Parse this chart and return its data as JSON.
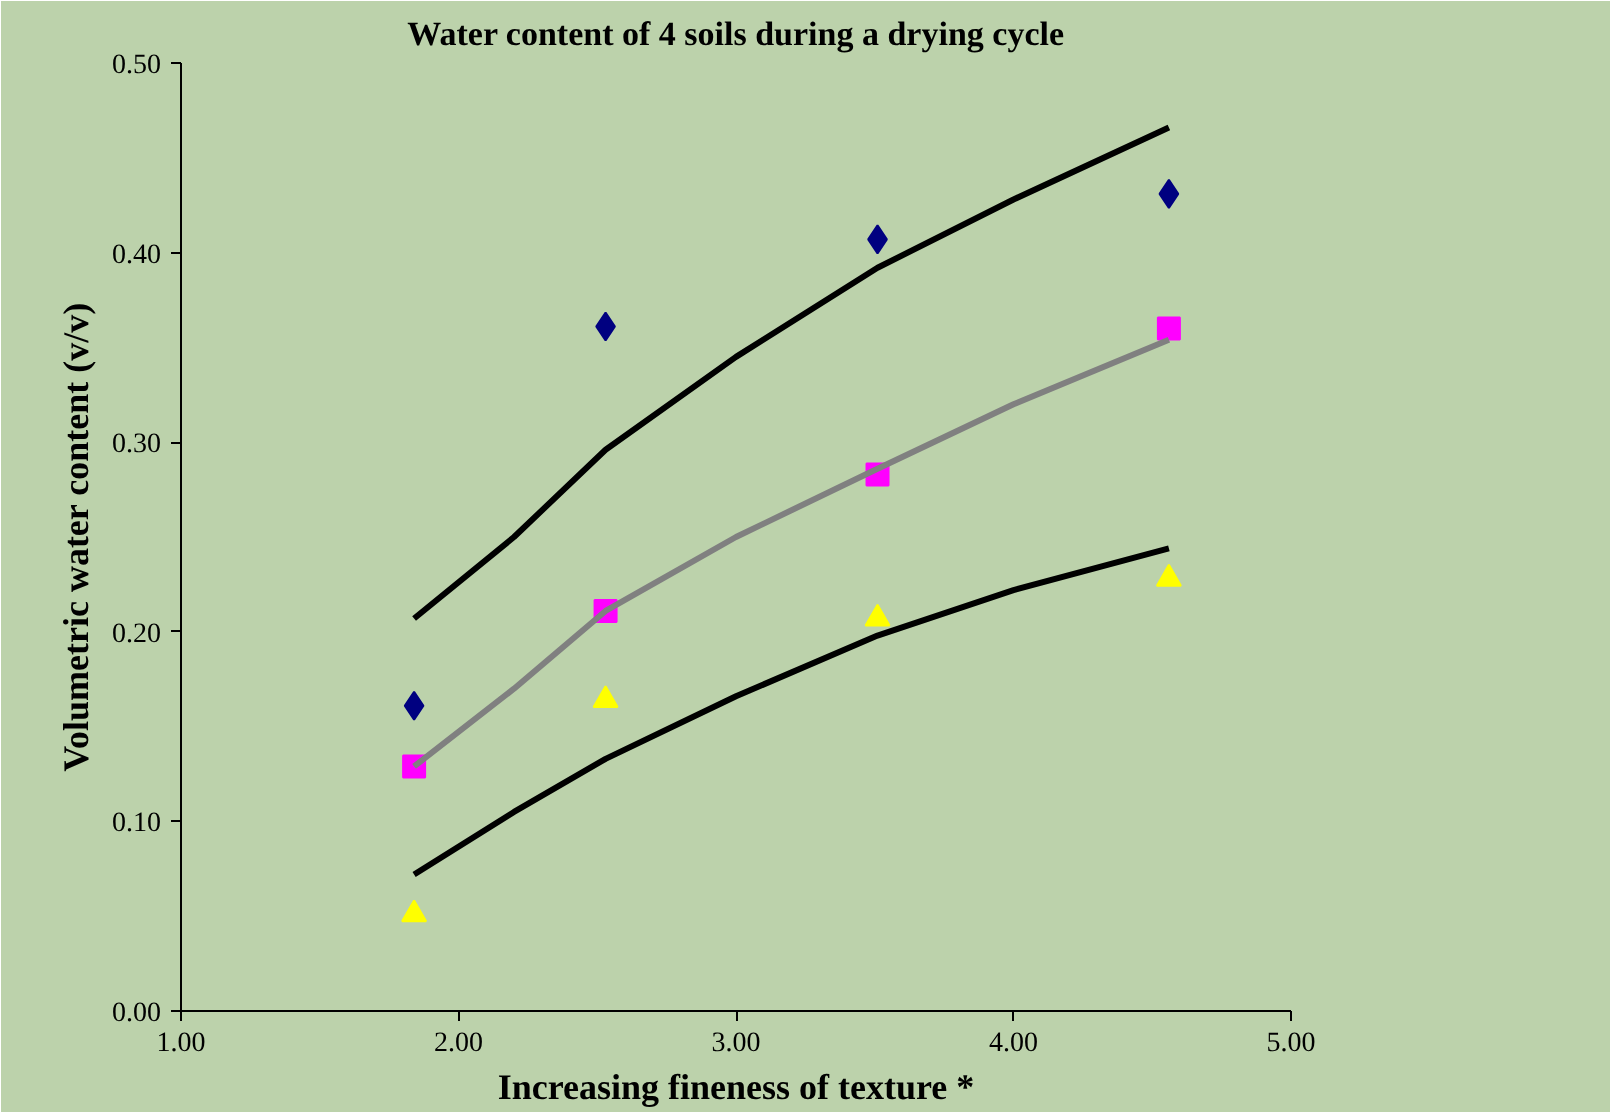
{
  "chart_data": {
    "type": "scatter",
    "title": "Water content of 4 soils during a drying cycle",
    "xlabel": "Increasing fineness of texture *",
    "ylabel": "Volumetric water content (v/v)",
    "xlim": [
      1,
      5
    ],
    "xticks": [
      {
        "value": 1,
        "label": "1.00"
      },
      {
        "value": 2,
        "label": "2.00"
      },
      {
        "value": 3,
        "label": "3.00"
      },
      {
        "value": 4,
        "label": "4.00"
      },
      {
        "value": 5,
        "label": "5.00"
      }
    ],
    "ylim": [
      0,
      0.5
    ],
    "yticks": [
      {
        "value": 0,
        "label": "0.00"
      },
      {
        "value": 0.1,
        "label": "0.10"
      },
      {
        "value": 0.2,
        "label": "0.20"
      },
      {
        "value": 0.3,
        "label": "0.30"
      },
      {
        "value": 0.4,
        "label": "0.40"
      },
      {
        "value": 0.5,
        "label": "0.50"
      }
    ],
    "grid": false,
    "series": [
      {
        "marker": "diamond",
        "color": "#000080",
        "x": [
          1.84,
          2.53,
          3.51,
          4.56
        ],
        "values": [
          0.161,
          0.361,
          0.407,
          0.431
        ]
      },
      {
        "marker": "square",
        "color": "#ff00ff",
        "x": [
          1.84,
          2.53,
          3.51,
          4.56
        ],
        "values": [
          0.129,
          0.211,
          0.283,
          0.36
        ]
      },
      {
        "marker": "triangle",
        "color": "#ffff00",
        "x": [
          1.84,
          2.53,
          3.51,
          4.56
        ],
        "values": [
          0.051,
          0.164,
          0.207,
          0.228
        ]
      },
      {
        "type": "line",
        "marker": "none",
        "color": "#000000",
        "x": [
          1.84,
          2.2,
          2.53,
          3.0,
          3.51,
          4.0,
          4.56
        ],
        "values": [
          0.207,
          0.25,
          0.296,
          0.345,
          0.392,
          0.428,
          0.466
        ]
      },
      {
        "type": "line",
        "marker": "none",
        "color": "#808080",
        "x": [
          1.84,
          2.2,
          2.53,
          3.0,
          3.51,
          4.0,
          4.56
        ],
        "values": [
          0.129,
          0.17,
          0.211,
          0.25,
          0.286,
          0.32,
          0.354
        ]
      },
      {
        "type": "line",
        "marker": "none",
        "color": "#000000",
        "x": [
          1.84,
          2.2,
          2.53,
          3.0,
          3.51,
          4.0,
          4.56
        ],
        "values": [
          0.072,
          0.105,
          0.133,
          0.166,
          0.198,
          0.222,
          0.244
        ]
      }
    ]
  }
}
